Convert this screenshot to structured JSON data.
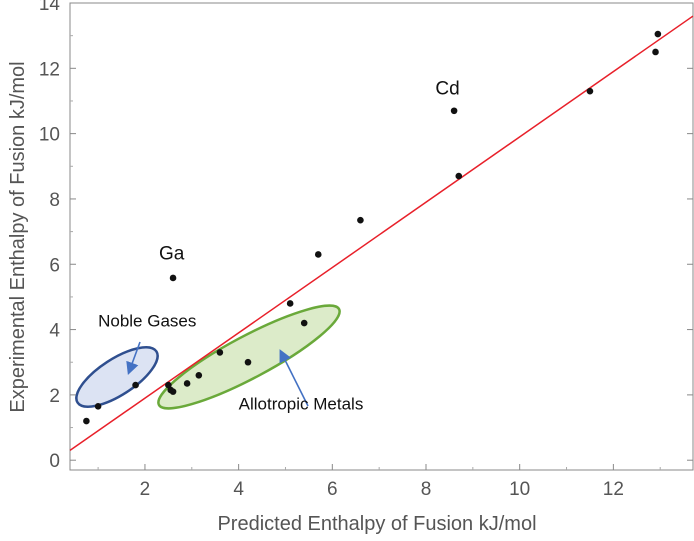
{
  "chart_data": {
    "type": "scatter",
    "title": "",
    "xlabel": "Predicted Enthalpy of Fusion kJ/mol",
    "ylabel": "Experimental Enthalpy of Fusion kJ/mol",
    "xlim": [
      0.4,
      13.7
    ],
    "ylim": [
      -0.3,
      14.0
    ],
    "xticks": [
      2,
      4,
      6,
      8,
      10,
      12
    ],
    "yticks": [
      0,
      2,
      4,
      6,
      8,
      10,
      12,
      14
    ],
    "grid": false,
    "points": [
      {
        "x": 0.75,
        "y": 1.2
      },
      {
        "x": 1.0,
        "y": 1.65
      },
      {
        "x": 1.8,
        "y": 2.3
      },
      {
        "x": 2.5,
        "y": 2.3
      },
      {
        "x": 2.55,
        "y": 2.15
      },
      {
        "x": 2.6,
        "y": 2.1
      },
      {
        "x": 2.6,
        "y": 5.58
      },
      {
        "x": 2.9,
        "y": 2.35
      },
      {
        "x": 3.15,
        "y": 2.6
      },
      {
        "x": 3.6,
        "y": 3.3
      },
      {
        "x": 4.2,
        "y": 3.0
      },
      {
        "x": 5.1,
        "y": 4.8
      },
      {
        "x": 5.4,
        "y": 4.2
      },
      {
        "x": 5.7,
        "y": 6.3
      },
      {
        "x": 6.6,
        "y": 7.35
      },
      {
        "x": 8.6,
        "y": 10.7
      },
      {
        "x": 8.7,
        "y": 8.7
      },
      {
        "x": 11.5,
        "y": 11.3
      },
      {
        "x": 12.9,
        "y": 12.5
      },
      {
        "x": 12.95,
        "y": 13.05
      }
    ],
    "fit_line": {
      "x": [
        0.4,
        13.7
      ],
      "y": [
        0.3,
        13.6
      ],
      "color": "#e8202a"
    },
    "point_color": "#111111",
    "annotations": [
      {
        "text": "Cd",
        "x": 8.2,
        "y": 11.2
      },
      {
        "text": "Ga",
        "x": 2.3,
        "y": 6.15
      },
      {
        "text": "Noble Gases",
        "x": 1.0,
        "y": 4.1
      },
      {
        "text": "Allotropic Metals",
        "x": 4.0,
        "y": 1.55
      }
    ],
    "regions": [
      {
        "label": "Noble Gases",
        "fill": "#dce3f3",
        "stroke": "#2f4f8f"
      },
      {
        "label": "Allotropic Metals",
        "fill": "#dcebc9",
        "stroke": "#6aa93a"
      }
    ],
    "arrow_color": "#4472c4"
  }
}
